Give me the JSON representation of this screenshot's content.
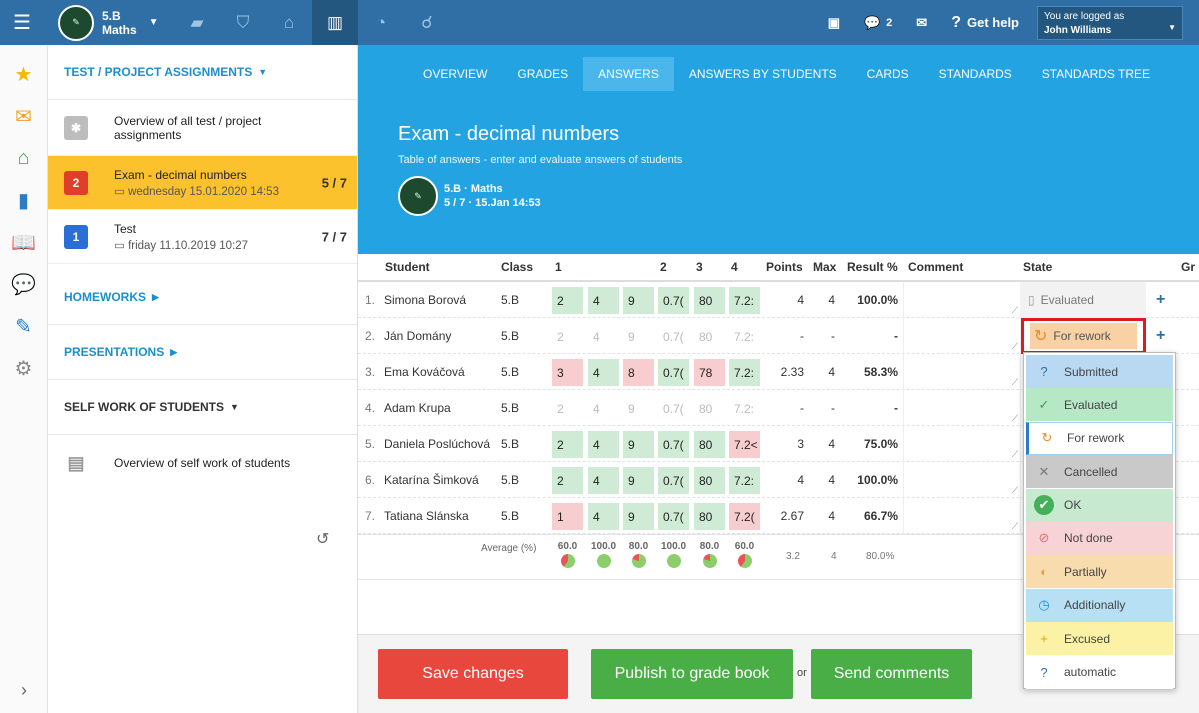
{
  "topbar": {
    "class_name_line1": "5.B",
    "class_name_line2": "Maths",
    "chat_count": "2",
    "help_label": "Get help",
    "logged_label": "You are logged as",
    "user_name": "John Williams"
  },
  "sidebar": {
    "section_tests": "TEST / PROJECT ASSIGNMENTS",
    "overview_tests": "Overview of all test / project assignments",
    "items": [
      {
        "badge": "2",
        "badge_color": "#e23d2a",
        "title": "Exam - decimal numbers",
        "sub": "wednesday 15.01.2020 14:53",
        "count": "5 / 7"
      },
      {
        "badge": "1",
        "badge_color": "#2a6fd6",
        "title": "Test",
        "sub": "friday 11.10.2019 10:27",
        "count": "7 / 7"
      }
    ],
    "section_homeworks": "HOMEWORKS",
    "section_presentations": "PRESENTATIONS",
    "section_self_work": "SELF WORK OF STUDENTS",
    "overview_self_work": "Overview of self work of students"
  },
  "tabs": [
    "OVERVIEW",
    "GRADES",
    "ANSWERS",
    "ANSWERS BY STUDENTS",
    "CARDS",
    "STANDARDS",
    "STANDARDS TREE"
  ],
  "header": {
    "title": "Exam - decimal numbers",
    "subtitle": "Table of answers - enter and evaluate answers of students",
    "class_label": "5.B · Maths",
    "meta": "5 / 7 · 15.Jan 14:53"
  },
  "table": {
    "columns": {
      "student": "Student",
      "class": "Class",
      "q1": "1",
      "q2": "2",
      "q3": "3",
      "q4": "4",
      "points": "Points",
      "max": "Max",
      "result": "Result %",
      "comment": "Comment",
      "state": "State",
      "extra": "Gr"
    },
    "rows": [
      {
        "n": "1.",
        "name": "Simona Borová",
        "cls": "5.B",
        "a": [
          "2",
          "4",
          "9",
          "0.7(",
          "80",
          "7.2:"
        ],
        "c": [
          "g",
          "g",
          "g",
          "g",
          "g",
          "g"
        ],
        "points": "4",
        "max": "4",
        "result": "100.0%"
      },
      {
        "n": "2.",
        "name": "Ján Domány",
        "cls": "5.B",
        "a": [
          "2",
          "4",
          "9",
          "0.7(",
          "80",
          "7.2:"
        ],
        "c": [
          "e",
          "e",
          "e",
          "e",
          "e",
          "e"
        ],
        "points": "-",
        "max": "-",
        "result": "-"
      },
      {
        "n": "3.",
        "name": "Ema Kováčová",
        "cls": "5.B",
        "a": [
          "3",
          "4",
          "8",
          "0.7(",
          "78",
          "7.2:"
        ],
        "c": [
          "r",
          "g",
          "r",
          "g",
          "r",
          "g"
        ],
        "points": "2.33",
        "max": "4",
        "result": "58.3%"
      },
      {
        "n": "4.",
        "name": "Adam Krupa",
        "cls": "5.B",
        "a": [
          "2",
          "4",
          "9",
          "0.7(",
          "80",
          "7.2:"
        ],
        "c": [
          "e",
          "e",
          "e",
          "e",
          "e",
          "e"
        ],
        "points": "-",
        "max": "-",
        "result": "-"
      },
      {
        "n": "5.",
        "name": "Daniela Poslúchová",
        "cls": "5.B",
        "a": [
          "2",
          "4",
          "9",
          "0.7(",
          "80",
          "7.2<"
        ],
        "c": [
          "g",
          "g",
          "g",
          "g",
          "g",
          "r"
        ],
        "points": "3",
        "max": "4",
        "result": "75.0%"
      },
      {
        "n": "6.",
        "name": "Katarína Šimková",
        "cls": "5.B",
        "a": [
          "2",
          "4",
          "9",
          "0.7(",
          "80",
          "7.2:"
        ],
        "c": [
          "g",
          "g",
          "g",
          "g",
          "g",
          "g"
        ],
        "points": "4",
        "max": "4",
        "result": "100.0%"
      },
      {
        "n": "7.",
        "name": "Tatiana Slánska",
        "cls": "5.B",
        "a": [
          "1",
          "4",
          "9",
          "0.7(",
          "80",
          "7.2("
        ],
        "c": [
          "r",
          "g",
          "g",
          "g",
          "g",
          "r"
        ],
        "points": "2.67",
        "max": "4",
        "result": "66.7%"
      }
    ],
    "state_evaluated": "Evaluated",
    "state_rework": "For rework",
    "average_label": "Average (%)",
    "averages": [
      "60.0",
      "100.0",
      "80.0",
      "100.0",
      "80.0",
      "60.0"
    ],
    "avg_points": "3.2",
    "avg_max": "4",
    "avg_result": "80.0%"
  },
  "state_menu": [
    {
      "label": "Submitted",
      "bg": "#b9d9f2",
      "icon": "?",
      "iconc": "#2f6fa5"
    },
    {
      "label": "Evaluated",
      "bg": "#b7e8c6",
      "icon": "✓",
      "iconc": "#3a9a55"
    },
    {
      "label": "For rework",
      "bg": "#ffffff",
      "icon": "↻",
      "iconc": "#f08a24"
    },
    {
      "label": "Cancelled",
      "bg": "#c9c9c9",
      "icon": "✕",
      "iconc": "#777"
    },
    {
      "label": "OK",
      "bg": "#c7e9cf",
      "icon": "✔",
      "iconc": "#fff"
    },
    {
      "label": "Not done",
      "bg": "#f7d3d6",
      "icon": "⊘",
      "iconc": "#e0707a"
    },
    {
      "label": "Partially",
      "bg": "#f8dcae",
      "icon": "◐",
      "iconc": "#e9a23c"
    },
    {
      "label": "Additionally",
      "bg": "#b7e0f5",
      "icon": "◷",
      "iconc": "#1c8fd6"
    },
    {
      "label": "Excused",
      "bg": "#fbf2a6",
      "icon": "+",
      "iconc": "#e2a400"
    },
    {
      "label": "automatic",
      "bg": "#ffffff",
      "icon": "?",
      "iconc": "#2f6fa5"
    }
  ],
  "footer": {
    "save": "Save changes",
    "publish": "Publish to grade book",
    "or": "or",
    "send": "Send comments"
  }
}
